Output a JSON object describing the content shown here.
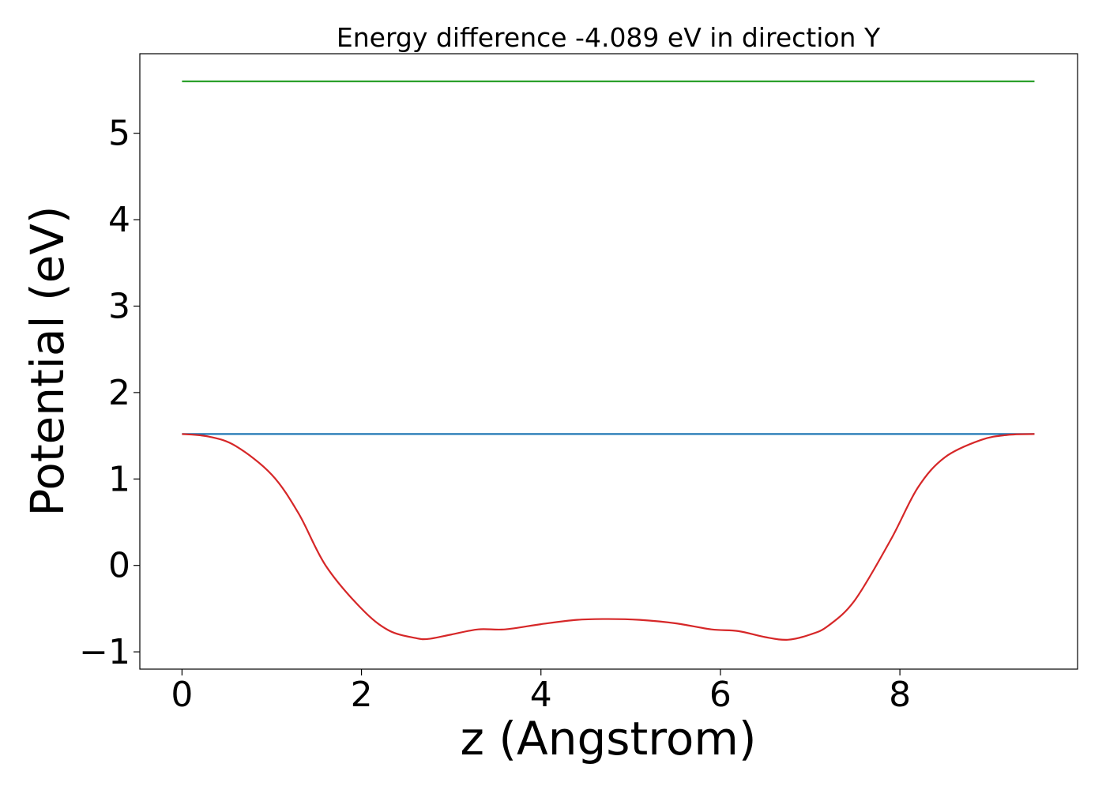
{
  "chart_data": {
    "type": "line",
    "title": "Energy difference -4.089 eV in direction Y",
    "xlabel": "z (Angstrom)",
    "ylabel": "Potential (eV)",
    "xlim": [
      -0.47,
      9.98
    ],
    "ylim": [
      -1.2,
      5.92
    ],
    "xticks": [
      0,
      2,
      4,
      6,
      8
    ],
    "xtick_labels": [
      "0",
      "2",
      "4",
      "6",
      "8"
    ],
    "yticks": [
      -1,
      0,
      1,
      2,
      3,
      4,
      5
    ],
    "ytick_labels": [
      "−1",
      "0",
      "1",
      "2",
      "3",
      "4",
      "5"
    ],
    "grid": false,
    "series": [
      {
        "color": "#2ca02c",
        "x": [
          0,
          9.5
        ],
        "y": [
          5.6,
          5.6
        ]
      },
      {
        "color": "#1f77b4",
        "x": [
          0,
          9.5
        ],
        "y": [
          1.52,
          1.52
        ]
      },
      {
        "color": "#d62728",
        "x": [
          0,
          0.3,
          0.6,
          1.0,
          1.3,
          1.6,
          2.0,
          2.3,
          2.6,
          2.75,
          3.0,
          3.3,
          3.6,
          4.0,
          4.4,
          4.75,
          5.1,
          5.5,
          5.9,
          6.2,
          6.5,
          6.75,
          7.0,
          7.2,
          7.5,
          7.9,
          8.2,
          8.5,
          8.9,
          9.2,
          9.5
        ],
        "y": [
          1.52,
          1.49,
          1.38,
          1.05,
          0.6,
          0.0,
          -0.5,
          -0.75,
          -0.84,
          -0.85,
          -0.8,
          -0.74,
          -0.74,
          -0.68,
          -0.63,
          -0.62,
          -0.63,
          -0.67,
          -0.74,
          -0.76,
          -0.83,
          -0.86,
          -0.8,
          -0.7,
          -0.4,
          0.3,
          0.9,
          1.25,
          1.45,
          1.51,
          1.52
        ]
      }
    ]
  }
}
